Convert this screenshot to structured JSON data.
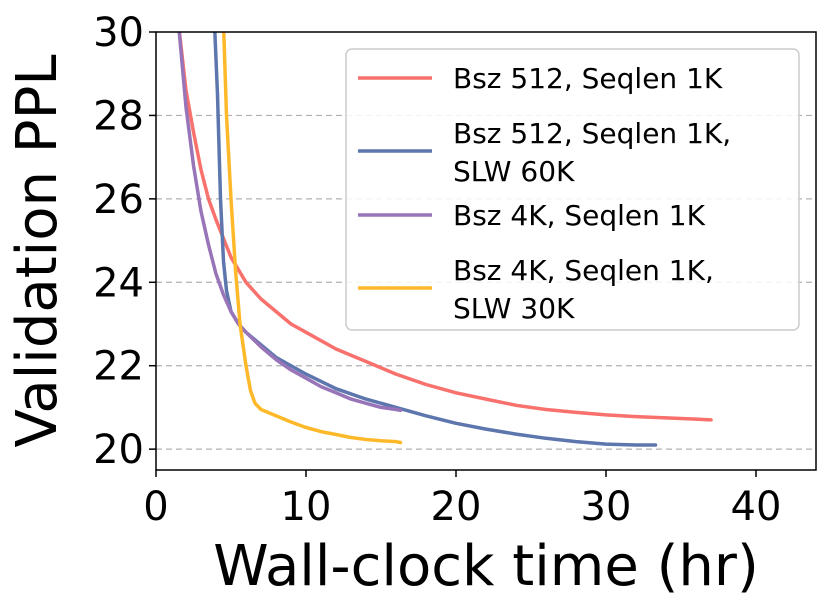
{
  "chart_data": {
    "type": "line",
    "title": "",
    "xlabel": "Wall-clock time (hr)",
    "ylabel": "Validation PPL",
    "xlim": [
      0,
      44
    ],
    "ylim": [
      19.5,
      30
    ],
    "xticks": [
      0,
      10,
      20,
      30,
      40
    ],
    "xtick_labels": [
      "0",
      "10",
      "20",
      "30",
      "40"
    ],
    "yticks": [
      20,
      22,
      24,
      26,
      28,
      30
    ],
    "ytick_labels": [
      "20",
      "22",
      "24",
      "26",
      "28",
      "30"
    ],
    "grid": "horizontal dashed",
    "legend_position": "top-right",
    "series": [
      {
        "name": "Bsz 512, Seqlen 1K",
        "color": "#f8716c",
        "x": [
          1.5,
          2,
          2.5,
          3,
          3.5,
          4,
          5,
          6,
          7,
          8,
          9,
          10,
          12,
          14,
          16,
          18,
          20,
          22,
          24,
          26,
          28,
          30,
          32,
          34,
          36,
          37
        ],
        "y": [
          30.2,
          28.6,
          27.6,
          26.7,
          26.0,
          25.5,
          24.6,
          24.0,
          23.6,
          23.3,
          23.0,
          22.8,
          22.4,
          22.1,
          21.8,
          21.55,
          21.35,
          21.2,
          21.05,
          20.95,
          20.88,
          20.82,
          20.78,
          20.75,
          20.72,
          20.7
        ]
      },
      {
        "name": "Bsz 512, Seqlen 1K, SLW 60K",
        "color": "#5d76ad",
        "x": [
          3.9,
          4.1,
          4.3,
          4.5,
          4.7,
          5,
          5.5,
          6,
          7,
          8,
          10,
          12,
          14,
          16,
          18,
          20,
          22,
          24,
          26,
          28,
          30,
          32,
          33.3
        ],
        "y": [
          30.2,
          28.5,
          26.0,
          24.5,
          23.8,
          23.3,
          23.0,
          22.8,
          22.5,
          22.2,
          21.8,
          21.45,
          21.2,
          21.0,
          20.8,
          20.62,
          20.48,
          20.36,
          20.26,
          20.18,
          20.12,
          20.1,
          20.1
        ]
      },
      {
        "name": "Bsz 4K, Seqlen 1K",
        "color": "#9874b8",
        "x": [
          1.5,
          2,
          2.5,
          3,
          3.5,
          4,
          4.5,
          5,
          5.5,
          6,
          7,
          8,
          9,
          10,
          11,
          12,
          13,
          14,
          15,
          16,
          16.3
        ],
        "y": [
          30.2,
          28.2,
          26.8,
          25.7,
          24.9,
          24.2,
          23.7,
          23.3,
          23.0,
          22.8,
          22.45,
          22.15,
          21.9,
          21.7,
          21.5,
          21.35,
          21.2,
          21.1,
          21.0,
          20.95,
          20.93
        ]
      },
      {
        "name": "Bsz 4K, Seqlen 1K, SLW 30K",
        "color": "#fdb92a",
        "x": [
          4.5,
          4.7,
          5,
          5.3,
          5.6,
          6,
          6.3,
          6.6,
          7,
          8,
          9,
          10,
          11,
          12,
          13,
          14,
          15,
          16,
          16.3
        ],
        "y": [
          30.2,
          28.0,
          26.0,
          24.3,
          23.0,
          22.0,
          21.4,
          21.1,
          20.95,
          20.8,
          20.65,
          20.52,
          20.42,
          20.35,
          20.28,
          20.23,
          20.2,
          20.18,
          20.16
        ]
      }
    ],
    "legend": {
      "entries": [
        {
          "lines": [
            "Bsz 512, Seqlen 1K"
          ]
        },
        {
          "lines": [
            "Bsz 512, Seqlen 1K,",
            "SLW 60K"
          ]
        },
        {
          "lines": [
            "Bsz 4K, Seqlen 1K"
          ]
        },
        {
          "lines": [
            "Bsz 4K, Seqlen 1K,",
            "SLW 30K"
          ]
        }
      ]
    }
  }
}
